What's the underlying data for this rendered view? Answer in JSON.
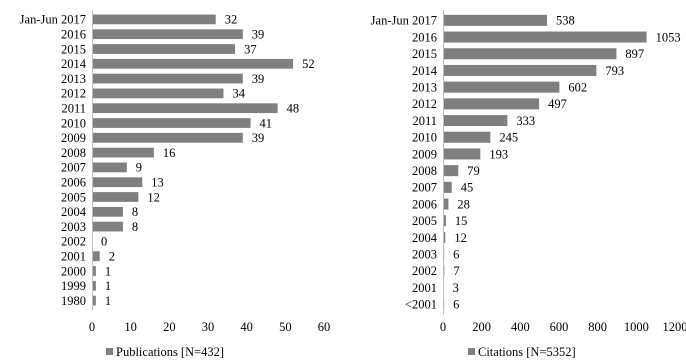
{
  "colors": {
    "bar": "#7f7f7f",
    "axis": "#bfbfbf",
    "text": "#000000"
  },
  "chart_data": [
    {
      "type": "bar",
      "orientation": "horizontal",
      "categories": [
        "Jan-Jun 2017",
        "2016",
        "2015",
        "2014",
        "2013",
        "2012",
        "2011",
        "2010",
        "2009",
        "2008",
        "2007",
        "2006",
        "2005",
        "2004",
        "2003",
        "2002",
        "2001",
        "2000",
        "1999",
        "1980"
      ],
      "series": [
        {
          "name": "Publications [N=432]",
          "values": [
            32,
            39,
            37,
            52,
            39,
            34,
            48,
            41,
            39,
            16,
            9,
            13,
            12,
            8,
            8,
            0,
            2,
            1,
            1,
            1
          ]
        }
      ],
      "xlim": [
        0,
        60
      ],
      "xticks": [
        "0",
        "10",
        "20",
        "30",
        "40",
        "50",
        "60"
      ],
      "grid": false,
      "legend": "bottom"
    },
    {
      "type": "bar",
      "orientation": "horizontal",
      "categories": [
        "Jan-Jun 2017",
        "2016",
        "2015",
        "2014",
        "2013",
        "2012",
        "2011",
        "2010",
        "2009",
        "2008",
        "2007",
        "2006",
        "2005",
        "2004",
        "2003",
        "2002",
        "2001",
        "<2001"
      ],
      "series": [
        {
          "name": "Citations [N=5352]",
          "values": [
            538,
            1053,
            897,
            793,
            602,
            497,
            333,
            245,
            193,
            79,
            45,
            28,
            15,
            12,
            6,
            7,
            3,
            6
          ]
        }
      ],
      "xlim": [
        0,
        1200
      ],
      "xticks": [
        "0",
        "200",
        "400",
        "600",
        "800",
        "1000",
        "1200"
      ],
      "grid": false,
      "legend": "bottom"
    }
  ]
}
